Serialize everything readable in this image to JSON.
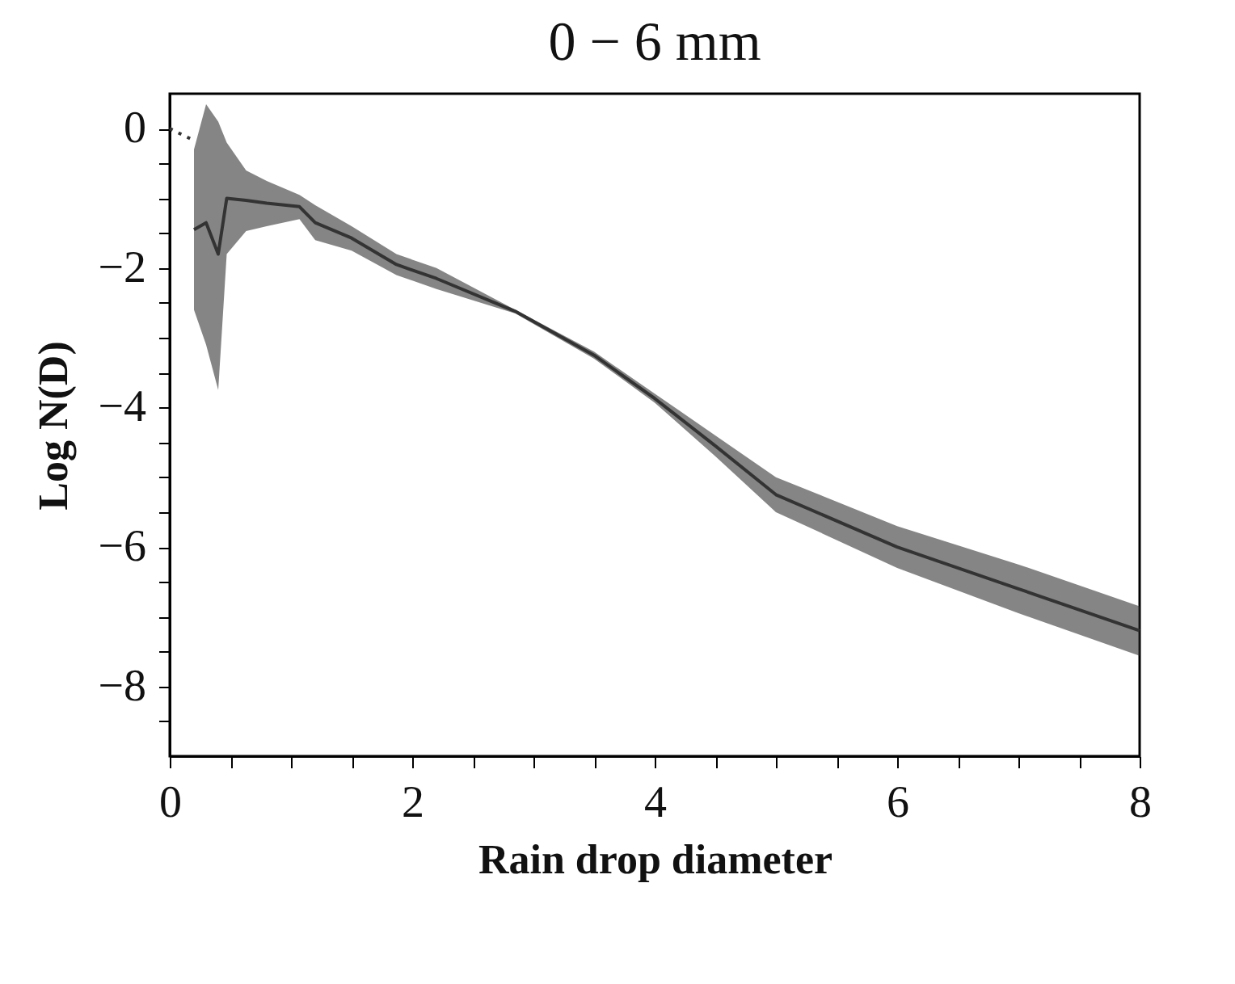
{
  "chart_data": {
    "type": "line",
    "title": "0 − 6 mm",
    "xlabel": "Rain drop diameter",
    "ylabel": "Log N(D)",
    "xlim": [
      0,
      8
    ],
    "ylim": [
      -9,
      0.5
    ],
    "xticks": [
      0,
      {
        "value": 0.5,
        "label": null
      },
      {
        "value": 1,
        "label": null
      },
      {
        "value": 1.5,
        "label": null
      },
      2,
      {
        "value": 2.5,
        "label": null
      },
      {
        "value": 3,
        "label": null
      },
      {
        "value": 3.5,
        "label": null
      },
      4,
      {
        "value": 4.5,
        "label": null
      },
      {
        "value": 5,
        "label": null
      },
      {
        "value": 5.5,
        "label": null
      },
      6,
      {
        "value": 6.5,
        "label": null
      },
      {
        "value": 7,
        "label": null
      },
      {
        "value": 7.5,
        "label": null
      },
      8
    ],
    "yticks": [
      {
        "value": -8.5,
        "label": null
      },
      {
        "value": -8,
        "label": "−8"
      },
      {
        "value": -7.5,
        "label": null
      },
      {
        "value": -7,
        "label": null
      },
      {
        "value": -6.5,
        "label": null
      },
      {
        "value": -6,
        "label": "−6"
      },
      {
        "value": -5.5,
        "label": null
      },
      {
        "value": -5,
        "label": null
      },
      {
        "value": -4.5,
        "label": null
      },
      {
        "value": -4,
        "label": "−4"
      },
      {
        "value": -3.5,
        "label": null
      },
      {
        "value": -3,
        "label": null
      },
      {
        "value": -2.5,
        "label": null
      },
      {
        "value": -2,
        "label": "−2"
      },
      {
        "value": -1.5,
        "label": null
      },
      {
        "value": -1,
        "label": null
      },
      {
        "value": -0.5,
        "label": null
      },
      0
    ],
    "grid": false,
    "marker": "none",
    "series": [
      {
        "color": "#333333",
        "line_style": "solid",
        "x": [
          0.2,
          0.3,
          0.4,
          0.47,
          0.63,
          0.8,
          1.07,
          1.2,
          1.5,
          1.87,
          2.2,
          2.85,
          3.5,
          4,
          4.5,
          5,
          6,
          7,
          8
        ],
        "values": [
          -1.45,
          -1.35,
          -1.8,
          -1.0,
          -1.03,
          -1.07,
          -1.12,
          -1.35,
          -1.57,
          -1.95,
          -2.15,
          -2.62,
          -3.25,
          -3.87,
          -4.55,
          -5.25,
          -6.0,
          -6.6,
          -7.2
        ],
        "upper": [
          -0.3,
          0.35,
          0.1,
          -0.2,
          -0.6,
          -0.75,
          -0.95,
          -1.1,
          -1.4,
          -1.8,
          -2.0,
          -2.6,
          -3.2,
          -3.8,
          -4.4,
          -5.0,
          -5.7,
          -6.25,
          -6.85
        ],
        "lower": [
          -2.6,
          -3.1,
          -3.75,
          -1.8,
          -1.47,
          -1.4,
          -1.3,
          -1.6,
          -1.75,
          -2.1,
          -2.3,
          -2.65,
          -3.3,
          -3.93,
          -4.7,
          -5.5,
          -6.3,
          -6.95,
          -7.56
        ]
      },
      {
        "color": "#333333",
        "line_style": "dotted",
        "x": [
          0,
          0.2
        ],
        "values": [
          0,
          -0.17
        ]
      }
    ]
  }
}
